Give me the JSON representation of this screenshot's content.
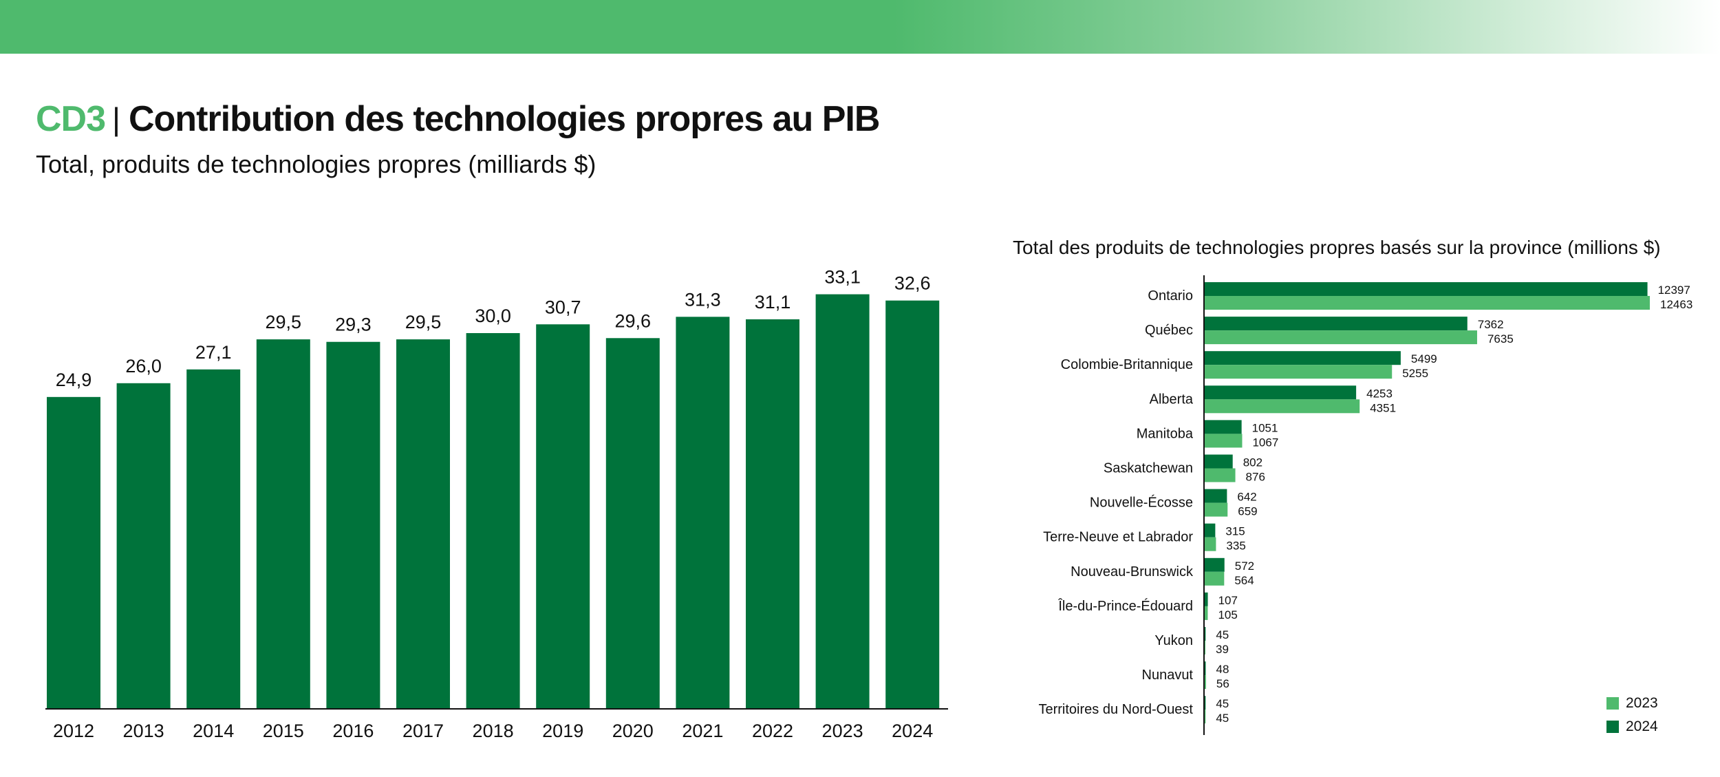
{
  "header": {
    "code": "CD3",
    "separator": "|",
    "title": "Contribution des technologies propres au PIB",
    "subtitle": "Total, produits de technologies propres (milliards $)"
  },
  "colors": {
    "dark_green": "#00733b",
    "light_green": "#4fba6d",
    "accent": "#4fba6d"
  },
  "chart_data": [
    {
      "type": "bar",
      "title": "Total, produits de technologies propres (milliards $)",
      "xlabel": "",
      "ylabel": "",
      "ylim": [
        0,
        35
      ],
      "grid": false,
      "categories": [
        "2012",
        "2013",
        "2014",
        "2015",
        "2016",
        "2017",
        "2018",
        "2019",
        "2020",
        "2021",
        "2022",
        "2023",
        "2024"
      ],
      "values": [
        24.9,
        26.0,
        27.1,
        29.5,
        29.3,
        29.5,
        30.0,
        30.7,
        29.6,
        31.3,
        31.1,
        33.1,
        32.6
      ],
      "value_labels": [
        "24,9",
        "26,0",
        "27,1",
        "29,5",
        "29,3",
        "29,5",
        "30,0",
        "30,7",
        "29,6",
        "31,3",
        "31,1",
        "33,1",
        "32,6"
      ]
    },
    {
      "type": "bar",
      "orientation": "horizontal",
      "title": "Total des produits de technologies propres basés sur la province (millions $)",
      "xlabel": "",
      "ylabel": "",
      "xlim": [
        0,
        12463
      ],
      "grid": false,
      "legend_position": "bottom-right",
      "categories": [
        "Ontario",
        "Québec",
        "Colombie-Britannique",
        "Alberta",
        "Manitoba",
        "Saskatchewan",
        "Nouvelle-Écosse",
        "Terre-Neuve et Labrador",
        "Nouveau-Brunswick",
        "Île-du-Prince-Édouard",
        "Yukon",
        "Nunavut",
        "Territoires du Nord-Ouest"
      ],
      "series": [
        {
          "name": "2024",
          "color": "#00733b",
          "values": [
            12397,
            7362,
            5499,
            4253,
            1051,
            802,
            642,
            315,
            572,
            107,
            45,
            48,
            45
          ]
        },
        {
          "name": "2023",
          "color": "#4fba6d",
          "values": [
            12463,
            7635,
            5255,
            4351,
            1067,
            876,
            659,
            335,
            564,
            105,
            39,
            56,
            45
          ]
        }
      ],
      "legend": [
        "2023",
        "2024"
      ]
    }
  ]
}
